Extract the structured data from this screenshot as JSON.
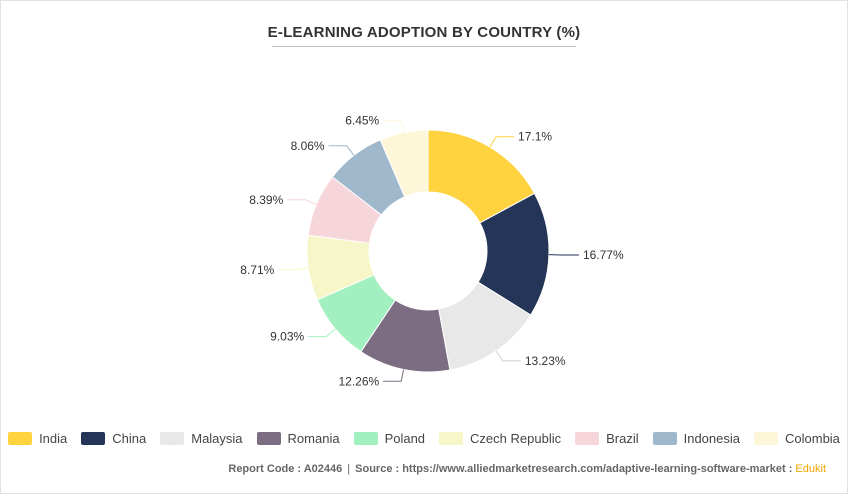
{
  "chart_data": {
    "type": "pie",
    "title": "E-LEARNING ADOPTION BY COUNTRY (%)",
    "donut": true,
    "legend_position": "bottom",
    "unit": "%",
    "categories": [
      "India",
      "China",
      "Malaysia",
      "Romania",
      "Poland",
      "Czech Republic",
      "Brazil",
      "Indonesia",
      "Colombia"
    ],
    "values": [
      17.1,
      16.77,
      13.23,
      12.26,
      9.03,
      8.71,
      8.39,
      8.06,
      6.45
    ],
    "labels": [
      "17.1%",
      "16.77%",
      "13.23%",
      "12.26%",
      "9.03%",
      "8.71%",
      "8.39%",
      "8.06%",
      "6.45%"
    ],
    "colors": [
      "#ffd23f",
      "#243558",
      "#e8e8e8",
      "#7c6d83",
      "#a2efbf",
      "#f6f6c8",
      "#f6d6da",
      "#9fb8cc",
      "#fef6d8"
    ]
  },
  "footer": {
    "report_code": "Report Code : A02446",
    "separator": "|",
    "source": "Source : https://www.alliedmarketresearch.com/adaptive-learning-software-market :",
    "brand": "Edukit"
  }
}
